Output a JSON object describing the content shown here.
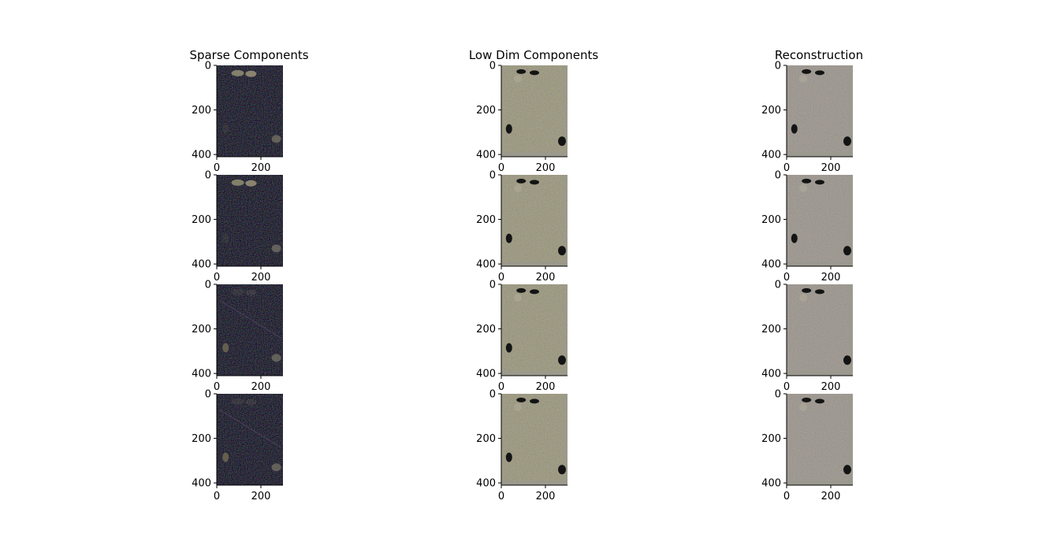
{
  "chart_data": {
    "type": "image-grid",
    "rows": 4,
    "columns": [
      {
        "title": "Sparse Components",
        "kind": "sparse"
      },
      {
        "title": "Low Dim Components",
        "kind": "lowdim"
      },
      {
        "title": "Reconstruction",
        "kind": "recon"
      }
    ],
    "image_extent": {
      "width": 300,
      "height": 410
    },
    "x_ticks": [
      0,
      200
    ],
    "y_ticks": [
      0,
      200,
      400
    ],
    "x_tick_labels": [
      "0",
      "200"
    ],
    "y_tick_labels": [
      "0",
      "200",
      "400"
    ],
    "colors": {
      "sparse_background": "#0b0b0c",
      "lowdim_base": "#7b7660",
      "recon_base": "#7c756a",
      "border_gray": "#9a998e",
      "blob_dark": "#141414"
    }
  }
}
